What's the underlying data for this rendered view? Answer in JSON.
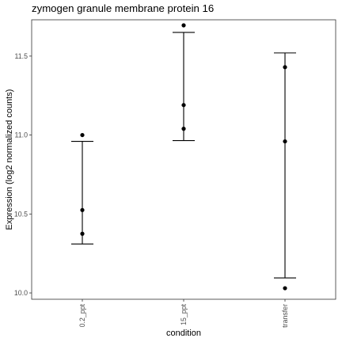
{
  "chart_data": {
    "type": "scatter",
    "title": "zymogen granule membrane protein 16",
    "xlabel": "condition",
    "ylabel": "Expression (log2 normalized counts)",
    "categories": [
      "0.2_ppt",
      "15_ppt",
      "transfer"
    ],
    "points": [
      {
        "category": "0.2_ppt",
        "values": [
          11.0,
          10.525,
          10.375
        ]
      },
      {
        "category": "15_ppt",
        "values": [
          11.695,
          11.19,
          11.04
        ]
      },
      {
        "category": "transfer",
        "values": [
          11.43,
          10.96,
          10.03
        ]
      }
    ],
    "error_bars": [
      {
        "category": "0.2_ppt",
        "low": 10.31,
        "high": 10.96
      },
      {
        "category": "15_ppt",
        "low": 10.965,
        "high": 11.65
      },
      {
        "category": "transfer",
        "low": 10.095,
        "high": 11.52
      }
    ],
    "yticks": [
      10.0,
      10.5,
      11.0,
      11.5
    ],
    "ytick_labels": [
      "10.0",
      "10.5",
      "11.0",
      "11.5"
    ],
    "ylim": [
      9.96,
      11.73
    ],
    "grid": false,
    "legend": "none",
    "colors": {
      "points": "#000000",
      "error_bars": "#000000",
      "panel_border": "#333333",
      "tick_text": "#4d4d4d"
    }
  }
}
